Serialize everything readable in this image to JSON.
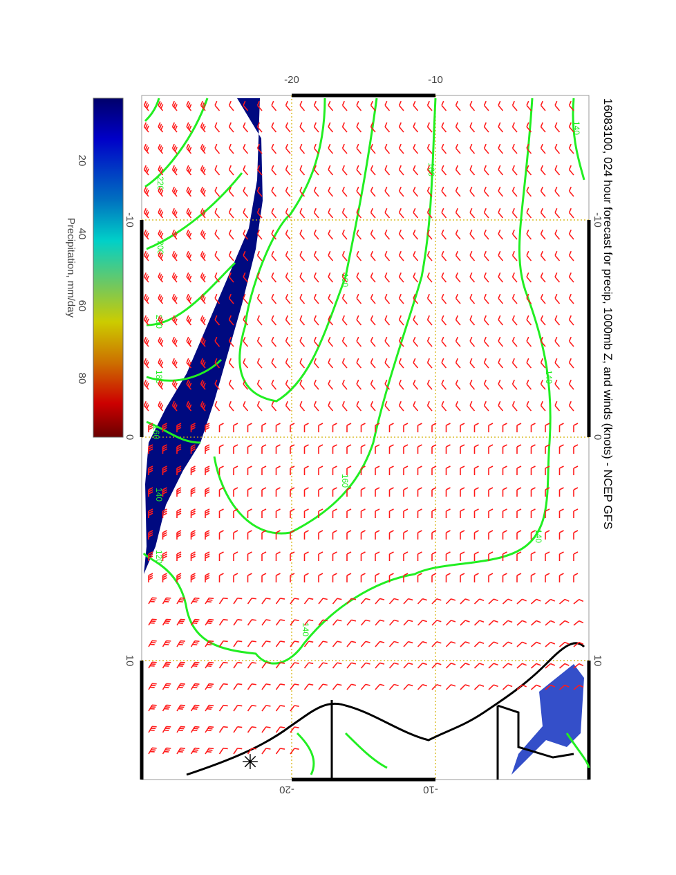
{
  "title": "16083100, 024 hour forecast for precip, 1000mb Z, and winds (knots) - NCEP GFS",
  "colorbar": {
    "label": "Precipitation, mm/day",
    "ticks": [
      "20",
      "40",
      "60",
      "80"
    ],
    "colors": [
      "#00006a",
      "#0000c8",
      "#0070c0",
      "#00d0c8",
      "#70c860",
      "#cccc00",
      "#cc7000",
      "#cc0000",
      "#6a0000"
    ]
  },
  "axes": {
    "top_ticks": [
      "-20",
      "-10"
    ],
    "bottom_ticks": [
      "-20",
      "-10"
    ],
    "left_ticks": [
      "-10",
      "0",
      "10"
    ],
    "right_ticks": [
      "-10",
      "0",
      "10"
    ]
  },
  "contour_labels": [
    "140",
    "160",
    "180",
    "220",
    "200",
    "200",
    "180",
    "160",
    "140",
    "120",
    "140",
    "140",
    "160",
    "140"
  ],
  "colors": {
    "contour": "#22ee22",
    "wind": "#ff1a1a",
    "precip": "#000a80",
    "grid": "#d4b000",
    "coast": "#000000"
  }
}
